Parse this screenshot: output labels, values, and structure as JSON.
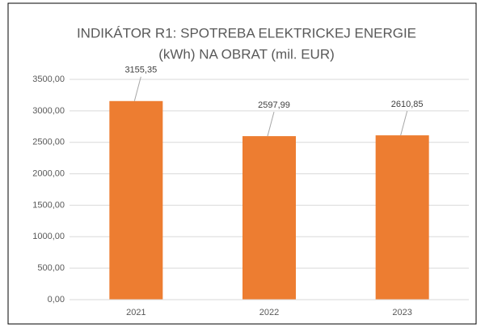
{
  "chart_data": {
    "type": "bar",
    "title": [
      "INDIKÁTOR R1: SPOTREBA ELEKTRICKEJ ENERGIE",
      "(kWh) NA OBRAT (mil. EUR)"
    ],
    "categories": [
      "2021",
      "2022",
      "2023"
    ],
    "values": [
      3155.35,
      2597.99,
      2610.85
    ],
    "value_labels": [
      "3155,35",
      "2597,99",
      "2610,85"
    ],
    "color": "#ed7d31",
    "ylim": [
      0,
      3500
    ],
    "yticks": [
      {
        "value": 0,
        "label": "0,00"
      },
      {
        "value": 500,
        "label": "500,00"
      },
      {
        "value": 1000,
        "label": "1000,00"
      },
      {
        "value": 1500,
        "label": "1500,00"
      },
      {
        "value": 2000,
        "label": "2000,00"
      },
      {
        "value": 2500,
        "label": "2500,00"
      },
      {
        "value": 3000,
        "label": "3000,00"
      },
      {
        "value": 3500,
        "label": "3500,00"
      }
    ],
    "grid": true
  }
}
